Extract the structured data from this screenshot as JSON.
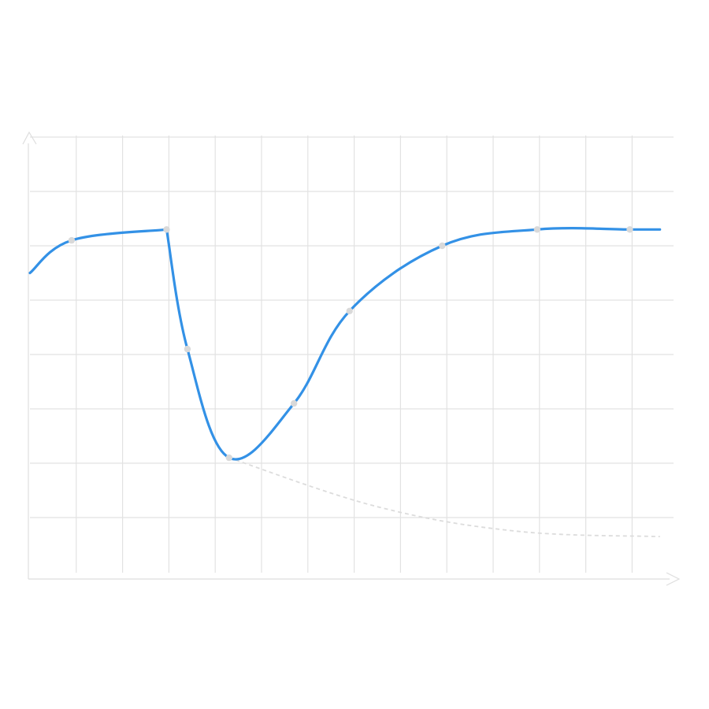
{
  "colors": {
    "series": "#3391e6",
    "marker": "#d9d9d9",
    "projection": "#dcdcdc",
    "grid": "#e2e2e2",
    "axis": "#dedede",
    "background": "#ffffff"
  },
  "chart_data": {
    "type": "line",
    "title": "",
    "xlabel": "",
    "ylabel": "",
    "grid": true,
    "legend": "none",
    "xlim": [
      0,
      14
    ],
    "ylim": [
      0,
      8
    ],
    "series": [
      {
        "values_x": [
          0,
          0.9,
          2.95,
          3.4,
          4.3,
          5.7,
          6.9,
          8.9,
          10.95,
          12.95,
          13.6
        ],
        "values_y": [
          5.5,
          6.1,
          6.3,
          4.1,
          2.1,
          3.1,
          4.8,
          6.0,
          6.3,
          6.3,
          6.3
        ],
        "markers_x": [
          0.9,
          2.95,
          3.4,
          4.3,
          5.7,
          6.9,
          8.9,
          10.95,
          12.95
        ],
        "markers_y": [
          6.1,
          6.3,
          4.1,
          2.1,
          3.1,
          4.8,
          6.0,
          6.3,
          6.3
        ]
      }
    ],
    "projection": {
      "style": "dashed",
      "x": [
        4.3,
        7.5,
        10.5,
        13.6
      ],
      "y": [
        2.1,
        1.2,
        0.75,
        0.65
      ]
    }
  }
}
